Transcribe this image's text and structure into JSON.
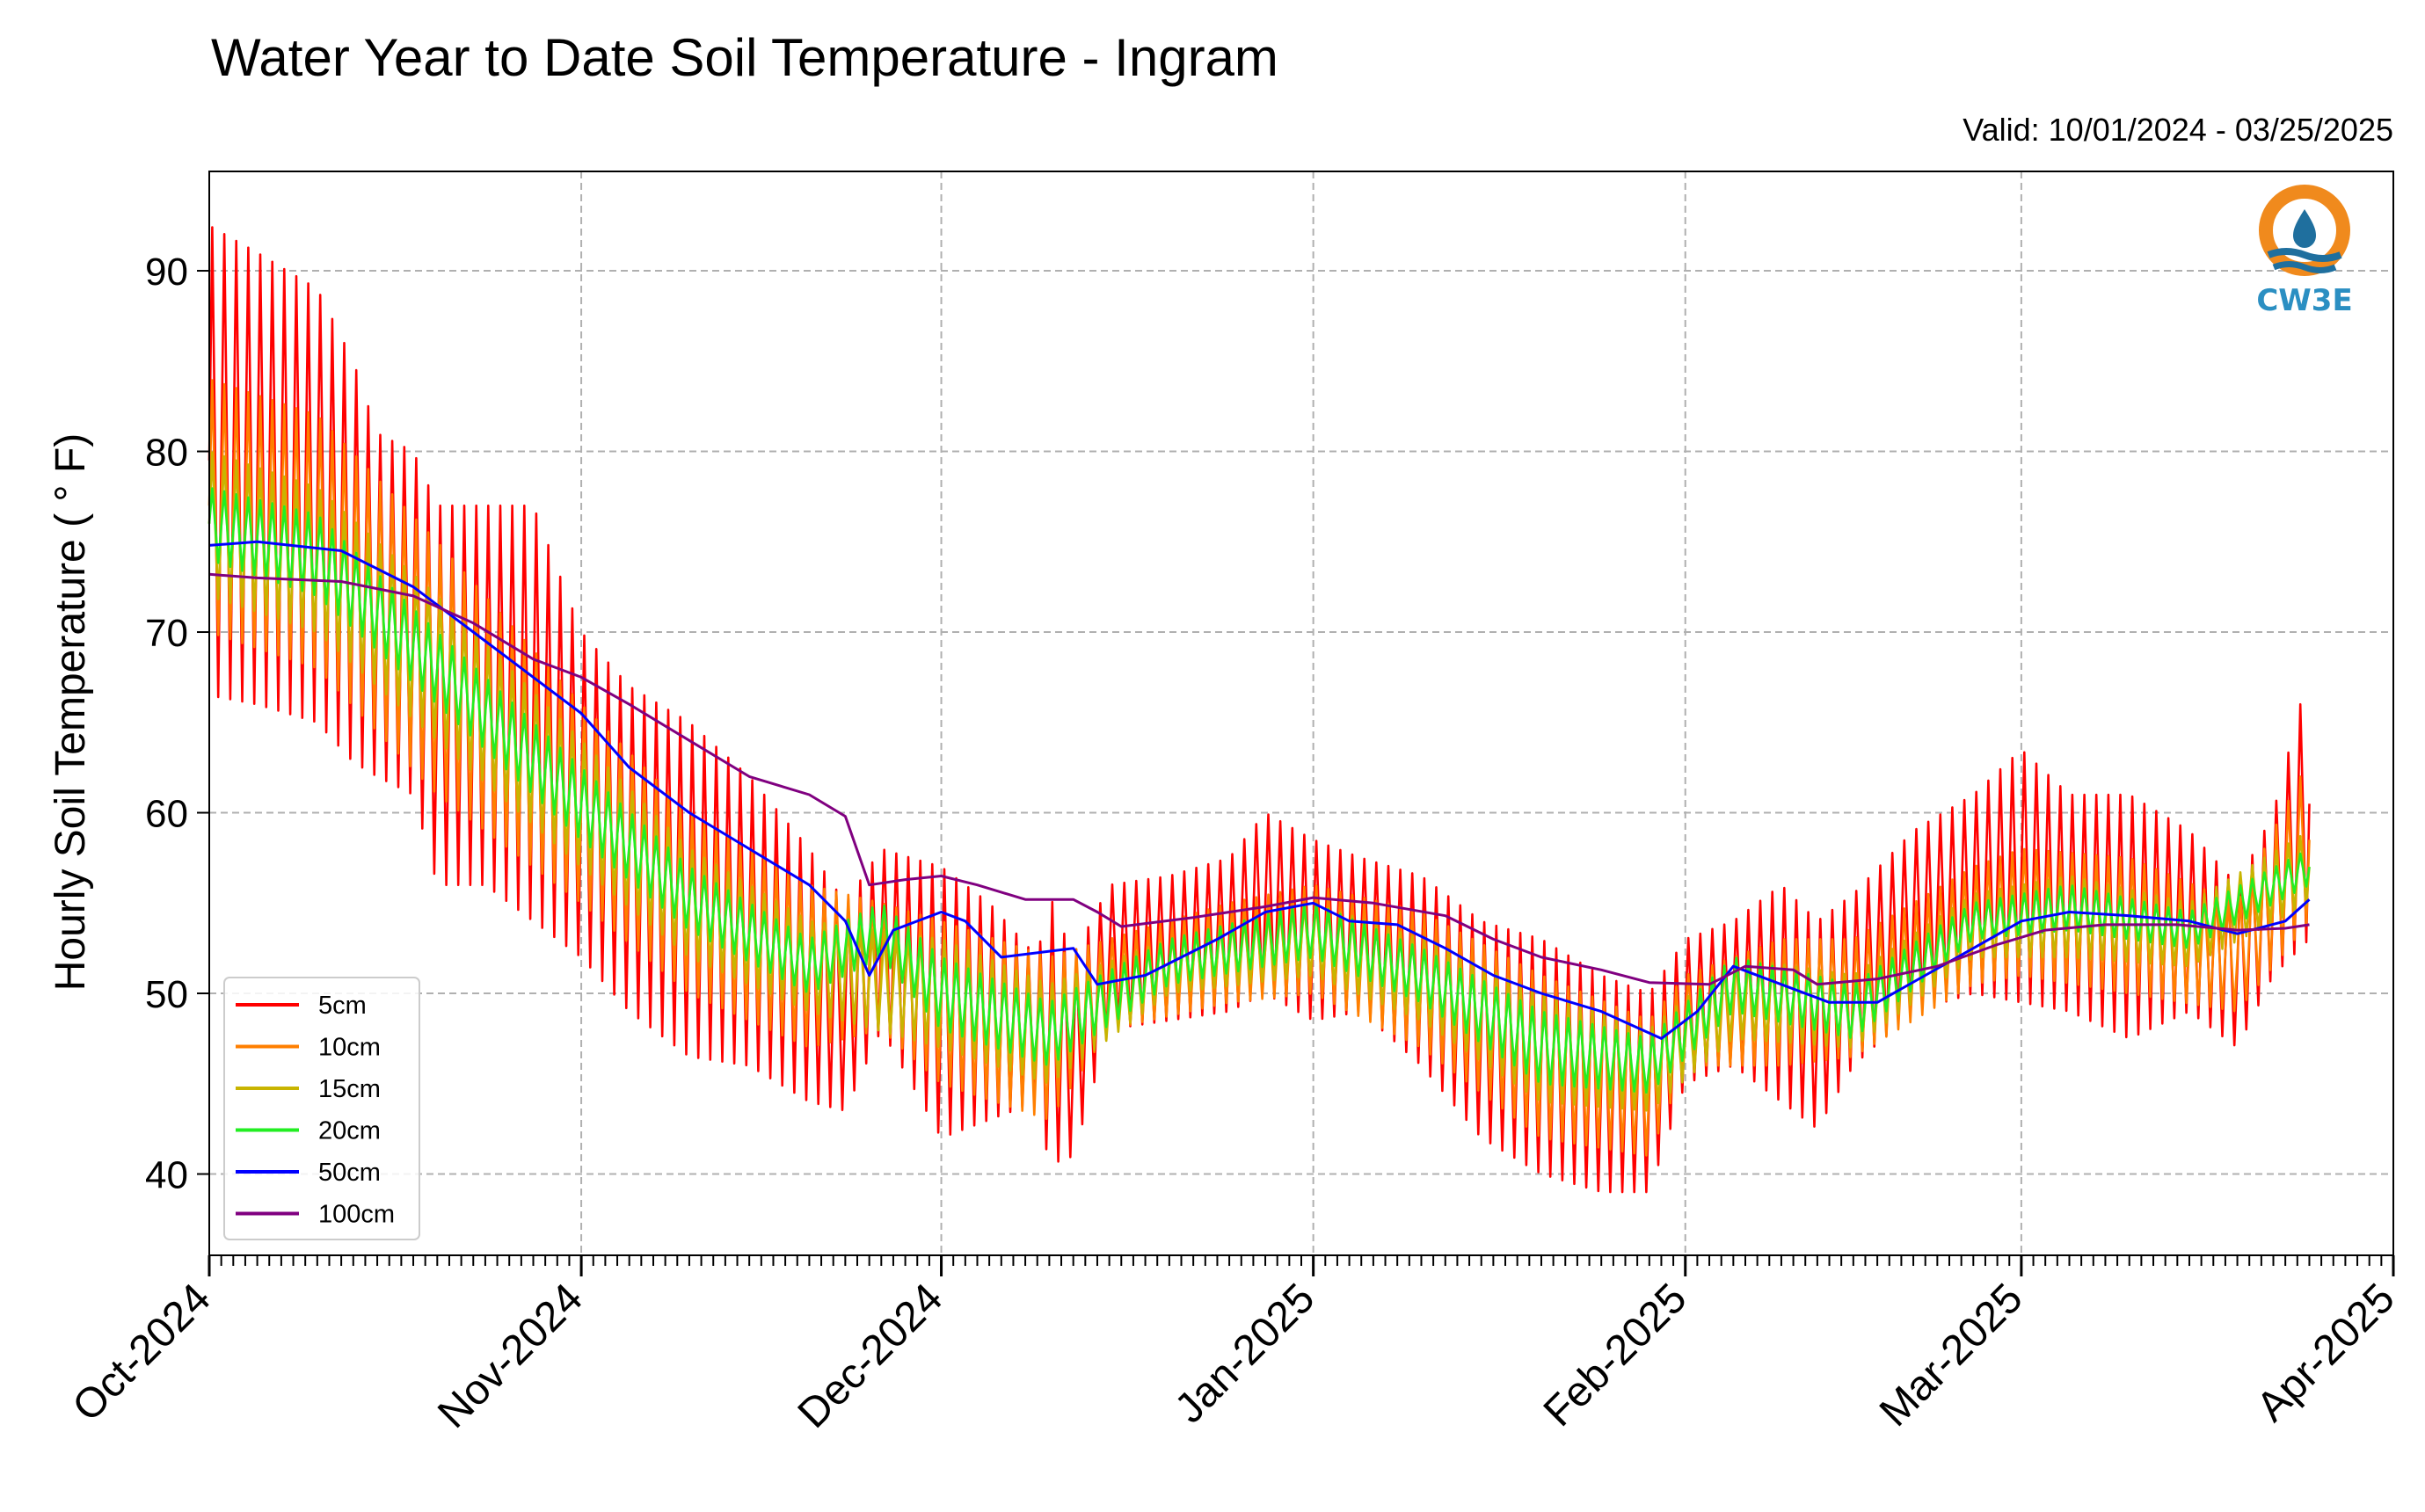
{
  "chart_data": {
    "type": "line",
    "title": "Water Year to Date Soil Temperature - Ingram",
    "subtitle": "Valid: 10/01/2024 - 03/25/2025",
    "ylabel": "Hourly Soil Temperature ( ° F)",
    "xlabel": "",
    "x_range": [
      "2024-10-01",
      "2025-04-01"
    ],
    "ylim": [
      35.5,
      95.5
    ],
    "y_ticks": [
      40,
      50,
      60,
      70,
      80,
      90
    ],
    "x_ticks": [
      {
        "date": "2024-10-01",
        "label": "Oct-2024"
      },
      {
        "date": "2024-11-01",
        "label": "Nov-2024"
      },
      {
        "date": "2024-12-01",
        "label": "Dec-2024"
      },
      {
        "date": "2025-01-01",
        "label": "Jan-2025"
      },
      {
        "date": "2025-02-01",
        "label": "Feb-2025"
      },
      {
        "date": "2025-03-01",
        "label": "Mar-2025"
      },
      {
        "date": "2025-04-01",
        "label": "Apr-2025"
      }
    ],
    "grid": true,
    "legend_position": "lower-left",
    "series": [
      {
        "name": "5cm",
        "color": "#ff0000",
        "note_type": "daily min/max envelope",
        "daily_extremes": [
          [
            "2024-10-01",
            66.5,
            92.5
          ],
          [
            "2024-10-05",
            66.0,
            91.0
          ],
          [
            "2024-10-10",
            65.0,
            89.0
          ],
          [
            "2024-10-13",
            62.8,
            85.0
          ],
          [
            "2024-10-15",
            62.0,
            81.0
          ],
          [
            "2024-10-18",
            61.0,
            80.0
          ],
          [
            "2024-10-20",
            56.0,
            77.0
          ],
          [
            "2024-10-24",
            56.0,
            77.0
          ],
          [
            "2024-10-28",
            54.0,
            77.0
          ],
          [
            "2024-11-01",
            52.0,
            70.0
          ],
          [
            "2024-11-05",
            49.0,
            67.0
          ],
          [
            "2024-11-10",
            46.5,
            65.0
          ],
          [
            "2024-11-15",
            46.0,
            62.0
          ],
          [
            "2024-11-20",
            44.0,
            58.0
          ],
          [
            "2024-11-23",
            43.5,
            55.0
          ],
          [
            "2024-11-26",
            48.0,
            58.0
          ],
          [
            "2024-12-01",
            42.0,
            57.0
          ],
          [
            "2024-12-05",
            43.0,
            55.0
          ],
          [
            "2024-12-09",
            44.0,
            52.0
          ],
          [
            "2024-12-10",
            40.5,
            55.5
          ],
          [
            "2024-12-12",
            41.0,
            52.0
          ],
          [
            "2024-12-15",
            48.0,
            56.0
          ],
          [
            "2024-12-20",
            48.5,
            56.5
          ],
          [
            "2024-12-25",
            49.0,
            57.5
          ],
          [
            "2024-12-28",
            50.0,
            60.0
          ],
          [
            "2025-01-01",
            48.5,
            58.5
          ],
          [
            "2025-01-05",
            49.0,
            57.5
          ],
          [
            "2025-01-10",
            46.0,
            56.5
          ],
          [
            "2025-01-15",
            42.0,
            54.0
          ],
          [
            "2025-01-20",
            40.0,
            53.0
          ],
          [
            "2025-01-25",
            39.0,
            51.0
          ],
          [
            "2025-01-29",
            39.0,
            50.0
          ],
          [
            "2025-02-01",
            45.0,
            53.0
          ],
          [
            "2025-02-05",
            46.0,
            54.0
          ],
          [
            "2025-02-09",
            44.0,
            56.0
          ],
          [
            "2025-02-12",
            42.5,
            54.0
          ],
          [
            "2025-02-15",
            46.0,
            55.5
          ],
          [
            "2025-02-20",
            49.0,
            59.0
          ],
          [
            "2025-02-25",
            50.0,
            61.0
          ],
          [
            "2025-03-01",
            49.5,
            63.5
          ],
          [
            "2025-03-05",
            49.0,
            61.0
          ],
          [
            "2025-03-10",
            47.5,
            61.0
          ],
          [
            "2025-03-15",
            49.0,
            59.0
          ],
          [
            "2025-03-19",
            47.0,
            56.0
          ],
          [
            "2025-03-22",
            51.0,
            60.0
          ],
          [
            "2025-03-25",
            53.0,
            68.0
          ]
        ]
      },
      {
        "name": "10cm",
        "color": "#ff7f00",
        "note_type": "daily min/max envelope",
        "daily_extremes": [
          [
            "2024-10-01",
            70.0,
            84.0
          ],
          [
            "2024-10-10",
            68.0,
            82.0
          ],
          [
            "2024-10-20",
            61.0,
            75.0
          ],
          [
            "2024-11-01",
            55.0,
            66.0
          ],
          [
            "2024-11-10",
            50.0,
            60.0
          ],
          [
            "2024-11-20",
            47.0,
            56.0
          ],
          [
            "2024-11-26",
            48.0,
            55.0
          ],
          [
            "2024-12-01",
            45.0,
            54.0
          ],
          [
            "2024-12-10",
            43.0,
            52.0
          ],
          [
            "2024-12-15",
            48.0,
            53.0
          ],
          [
            "2024-12-25",
            49.5,
            55.0
          ],
          [
            "2025-01-01",
            50.0,
            56.0
          ],
          [
            "2025-01-10",
            47.0,
            54.5
          ],
          [
            "2025-01-20",
            42.0,
            51.0
          ],
          [
            "2025-01-29",
            41.0,
            48.5
          ],
          [
            "2025-02-01",
            46.0,
            51.0
          ],
          [
            "2025-02-09",
            46.0,
            53.0
          ],
          [
            "2025-02-15",
            46.5,
            53.0
          ],
          [
            "2025-02-25",
            50.5,
            57.0
          ],
          [
            "2025-03-01",
            51.0,
            58.0
          ],
          [
            "2025-03-10",
            50.0,
            57.5
          ],
          [
            "2025-03-19",
            49.0,
            55.0
          ],
          [
            "2025-03-25",
            54.0,
            63.0
          ]
        ]
      },
      {
        "name": "15cm",
        "color": "#c8b400",
        "note_type": "daily min/max envelope",
        "daily_extremes": [
          [
            "2024-10-01",
            72.0,
            80.0
          ],
          [
            "2024-10-10",
            70.0,
            78.0
          ],
          [
            "2024-10-20",
            64.0,
            72.0
          ],
          [
            "2024-11-01",
            57.0,
            64.0
          ],
          [
            "2024-11-10",
            52.0,
            58.0
          ],
          [
            "2024-11-20",
            49.0,
            54.0
          ],
          [
            "2024-12-01",
            47.0,
            53.0
          ],
          [
            "2024-12-10",
            45.0,
            50.5
          ],
          [
            "2024-12-20",
            50.0,
            53.0
          ],
          [
            "2025-01-01",
            51.0,
            55.0
          ],
          [
            "2025-01-10",
            48.5,
            53.0
          ],
          [
            "2025-01-20",
            44.0,
            50.0
          ],
          [
            "2025-01-29",
            43.5,
            48.0
          ],
          [
            "2025-02-05",
            47.5,
            52.0
          ],
          [
            "2025-02-15",
            47.0,
            51.0
          ],
          [
            "2025-02-25",
            52.0,
            55.5
          ],
          [
            "2025-03-05",
            52.0,
            56.5
          ],
          [
            "2025-03-15",
            51.5,
            55.0
          ],
          [
            "2025-03-25",
            55.0,
            59.0
          ]
        ]
      },
      {
        "name": "20cm",
        "color": "#22ee22",
        "note_type": "daily min/max envelope",
        "daily_extremes": [
          [
            "2024-10-01",
            74.0,
            78.0
          ],
          [
            "2024-10-10",
            72.0,
            76.5
          ],
          [
            "2024-10-20",
            66.0,
            70.0
          ],
          [
            "2024-11-01",
            58.5,
            62.5
          ],
          [
            "2024-11-10",
            53.5,
            57.0
          ],
          [
            "2024-11-20",
            50.0,
            53.0
          ],
          [
            "2024-11-26",
            52.0,
            55.0
          ],
          [
            "2024-12-01",
            48.0,
            52.0
          ],
          [
            "2024-12-10",
            46.0,
            49.5
          ],
          [
            "2024-12-20",
            50.5,
            53.0
          ],
          [
            "2025-01-01",
            52.0,
            55.0
          ],
          [
            "2025-01-10",
            49.5,
            52.5
          ],
          [
            "2025-01-20",
            45.0,
            49.0
          ],
          [
            "2025-01-29",
            44.5,
            47.5
          ],
          [
            "2025-02-05",
            49.0,
            52.0
          ],
          [
            "2025-02-15",
            47.5,
            50.5
          ],
          [
            "2025-02-25",
            53.0,
            55.0
          ],
          [
            "2025-03-05",
            53.5,
            56.0
          ],
          [
            "2025-03-15",
            52.5,
            54.5
          ],
          [
            "2025-03-25",
            56.0,
            58.0
          ]
        ]
      },
      {
        "name": "50cm",
        "color": "#0000ff",
        "points": [
          [
            "2024-10-01",
            74.8
          ],
          [
            "2024-10-05",
            75.0
          ],
          [
            "2024-10-12",
            74.5
          ],
          [
            "2024-10-18",
            72.5
          ],
          [
            "2024-10-23",
            70.0
          ],
          [
            "2024-10-28",
            67.5
          ],
          [
            "2024-11-01",
            65.5
          ],
          [
            "2024-11-05",
            62.5
          ],
          [
            "2024-11-10",
            60.0
          ],
          [
            "2024-11-15",
            58.0
          ],
          [
            "2024-11-20",
            56.0
          ],
          [
            "2024-11-23",
            54.0
          ],
          [
            "2024-11-25",
            51.0
          ],
          [
            "2024-11-27",
            53.5
          ],
          [
            "2024-12-01",
            54.5
          ],
          [
            "2024-12-03",
            54.0
          ],
          [
            "2024-12-06",
            52.0
          ],
          [
            "2024-12-12",
            52.5
          ],
          [
            "2024-12-14",
            50.5
          ],
          [
            "2024-12-18",
            51.0
          ],
          [
            "2024-12-24",
            53.0
          ],
          [
            "2024-12-28",
            54.5
          ],
          [
            "2025-01-01",
            55.0
          ],
          [
            "2025-01-04",
            54.0
          ],
          [
            "2025-01-08",
            53.8
          ],
          [
            "2025-01-12",
            52.5
          ],
          [
            "2025-01-16",
            51.0
          ],
          [
            "2025-01-20",
            50.0
          ],
          [
            "2025-01-25",
            49.0
          ],
          [
            "2025-01-30",
            47.5
          ],
          [
            "2025-02-02",
            49.0
          ],
          [
            "2025-02-05",
            51.5
          ],
          [
            "2025-02-09",
            50.5
          ],
          [
            "2025-02-13",
            49.5
          ],
          [
            "2025-02-17",
            49.5
          ],
          [
            "2025-02-21",
            51.0
          ],
          [
            "2025-02-25",
            52.5
          ],
          [
            "2025-03-01",
            54.0
          ],
          [
            "2025-03-05",
            54.5
          ],
          [
            "2025-03-10",
            54.3
          ],
          [
            "2025-03-15",
            54.0
          ],
          [
            "2025-03-19",
            53.3
          ],
          [
            "2025-03-23",
            54.0
          ],
          [
            "2025-03-25",
            55.2
          ]
        ]
      },
      {
        "name": "100cm",
        "color": "#800080",
        "points": [
          [
            "2024-10-01",
            73.2
          ],
          [
            "2024-10-05",
            73.0
          ],
          [
            "2024-10-12",
            72.8
          ],
          [
            "2024-10-18",
            72.0
          ],
          [
            "2024-10-23",
            70.5
          ],
          [
            "2024-10-28",
            68.5
          ],
          [
            "2024-11-01",
            67.5
          ],
          [
            "2024-11-05",
            66.0
          ],
          [
            "2024-11-10",
            64.0
          ],
          [
            "2024-11-15",
            62.0
          ],
          [
            "2024-11-20",
            61.0
          ],
          [
            "2024-11-23",
            59.8
          ],
          [
            "2024-11-25",
            56.0
          ],
          [
            "2024-11-28",
            56.3
          ],
          [
            "2024-12-01",
            56.5
          ],
          [
            "2024-12-04",
            56.0
          ],
          [
            "2024-12-08",
            55.2
          ],
          [
            "2024-12-12",
            55.2
          ],
          [
            "2024-12-14",
            54.5
          ],
          [
            "2024-12-16",
            53.7
          ],
          [
            "2024-12-22",
            54.2
          ],
          [
            "2024-12-28",
            54.8
          ],
          [
            "2025-01-01",
            55.3
          ],
          [
            "2025-01-06",
            55.0
          ],
          [
            "2025-01-12",
            54.3
          ],
          [
            "2025-01-16",
            53.0
          ],
          [
            "2025-01-20",
            52.0
          ],
          [
            "2025-01-25",
            51.3
          ],
          [
            "2025-01-29",
            50.6
          ],
          [
            "2025-02-03",
            50.5
          ],
          [
            "2025-02-06",
            51.5
          ],
          [
            "2025-02-10",
            51.3
          ],
          [
            "2025-02-12",
            50.5
          ],
          [
            "2025-02-17",
            50.8
          ],
          [
            "2025-02-22",
            51.5
          ],
          [
            "2025-02-27",
            52.7
          ],
          [
            "2025-03-03",
            53.5
          ],
          [
            "2025-03-08",
            53.8
          ],
          [
            "2025-03-14",
            53.8
          ],
          [
            "2025-03-19",
            53.5
          ],
          [
            "2025-03-23",
            53.6
          ],
          [
            "2025-03-25",
            53.8
          ]
        ]
      }
    ]
  },
  "logo": {
    "text": "CW3E",
    "colors": {
      "sun": "#f08a1d",
      "water": "#1f6f9e",
      "text": "#2b8fc2"
    }
  }
}
